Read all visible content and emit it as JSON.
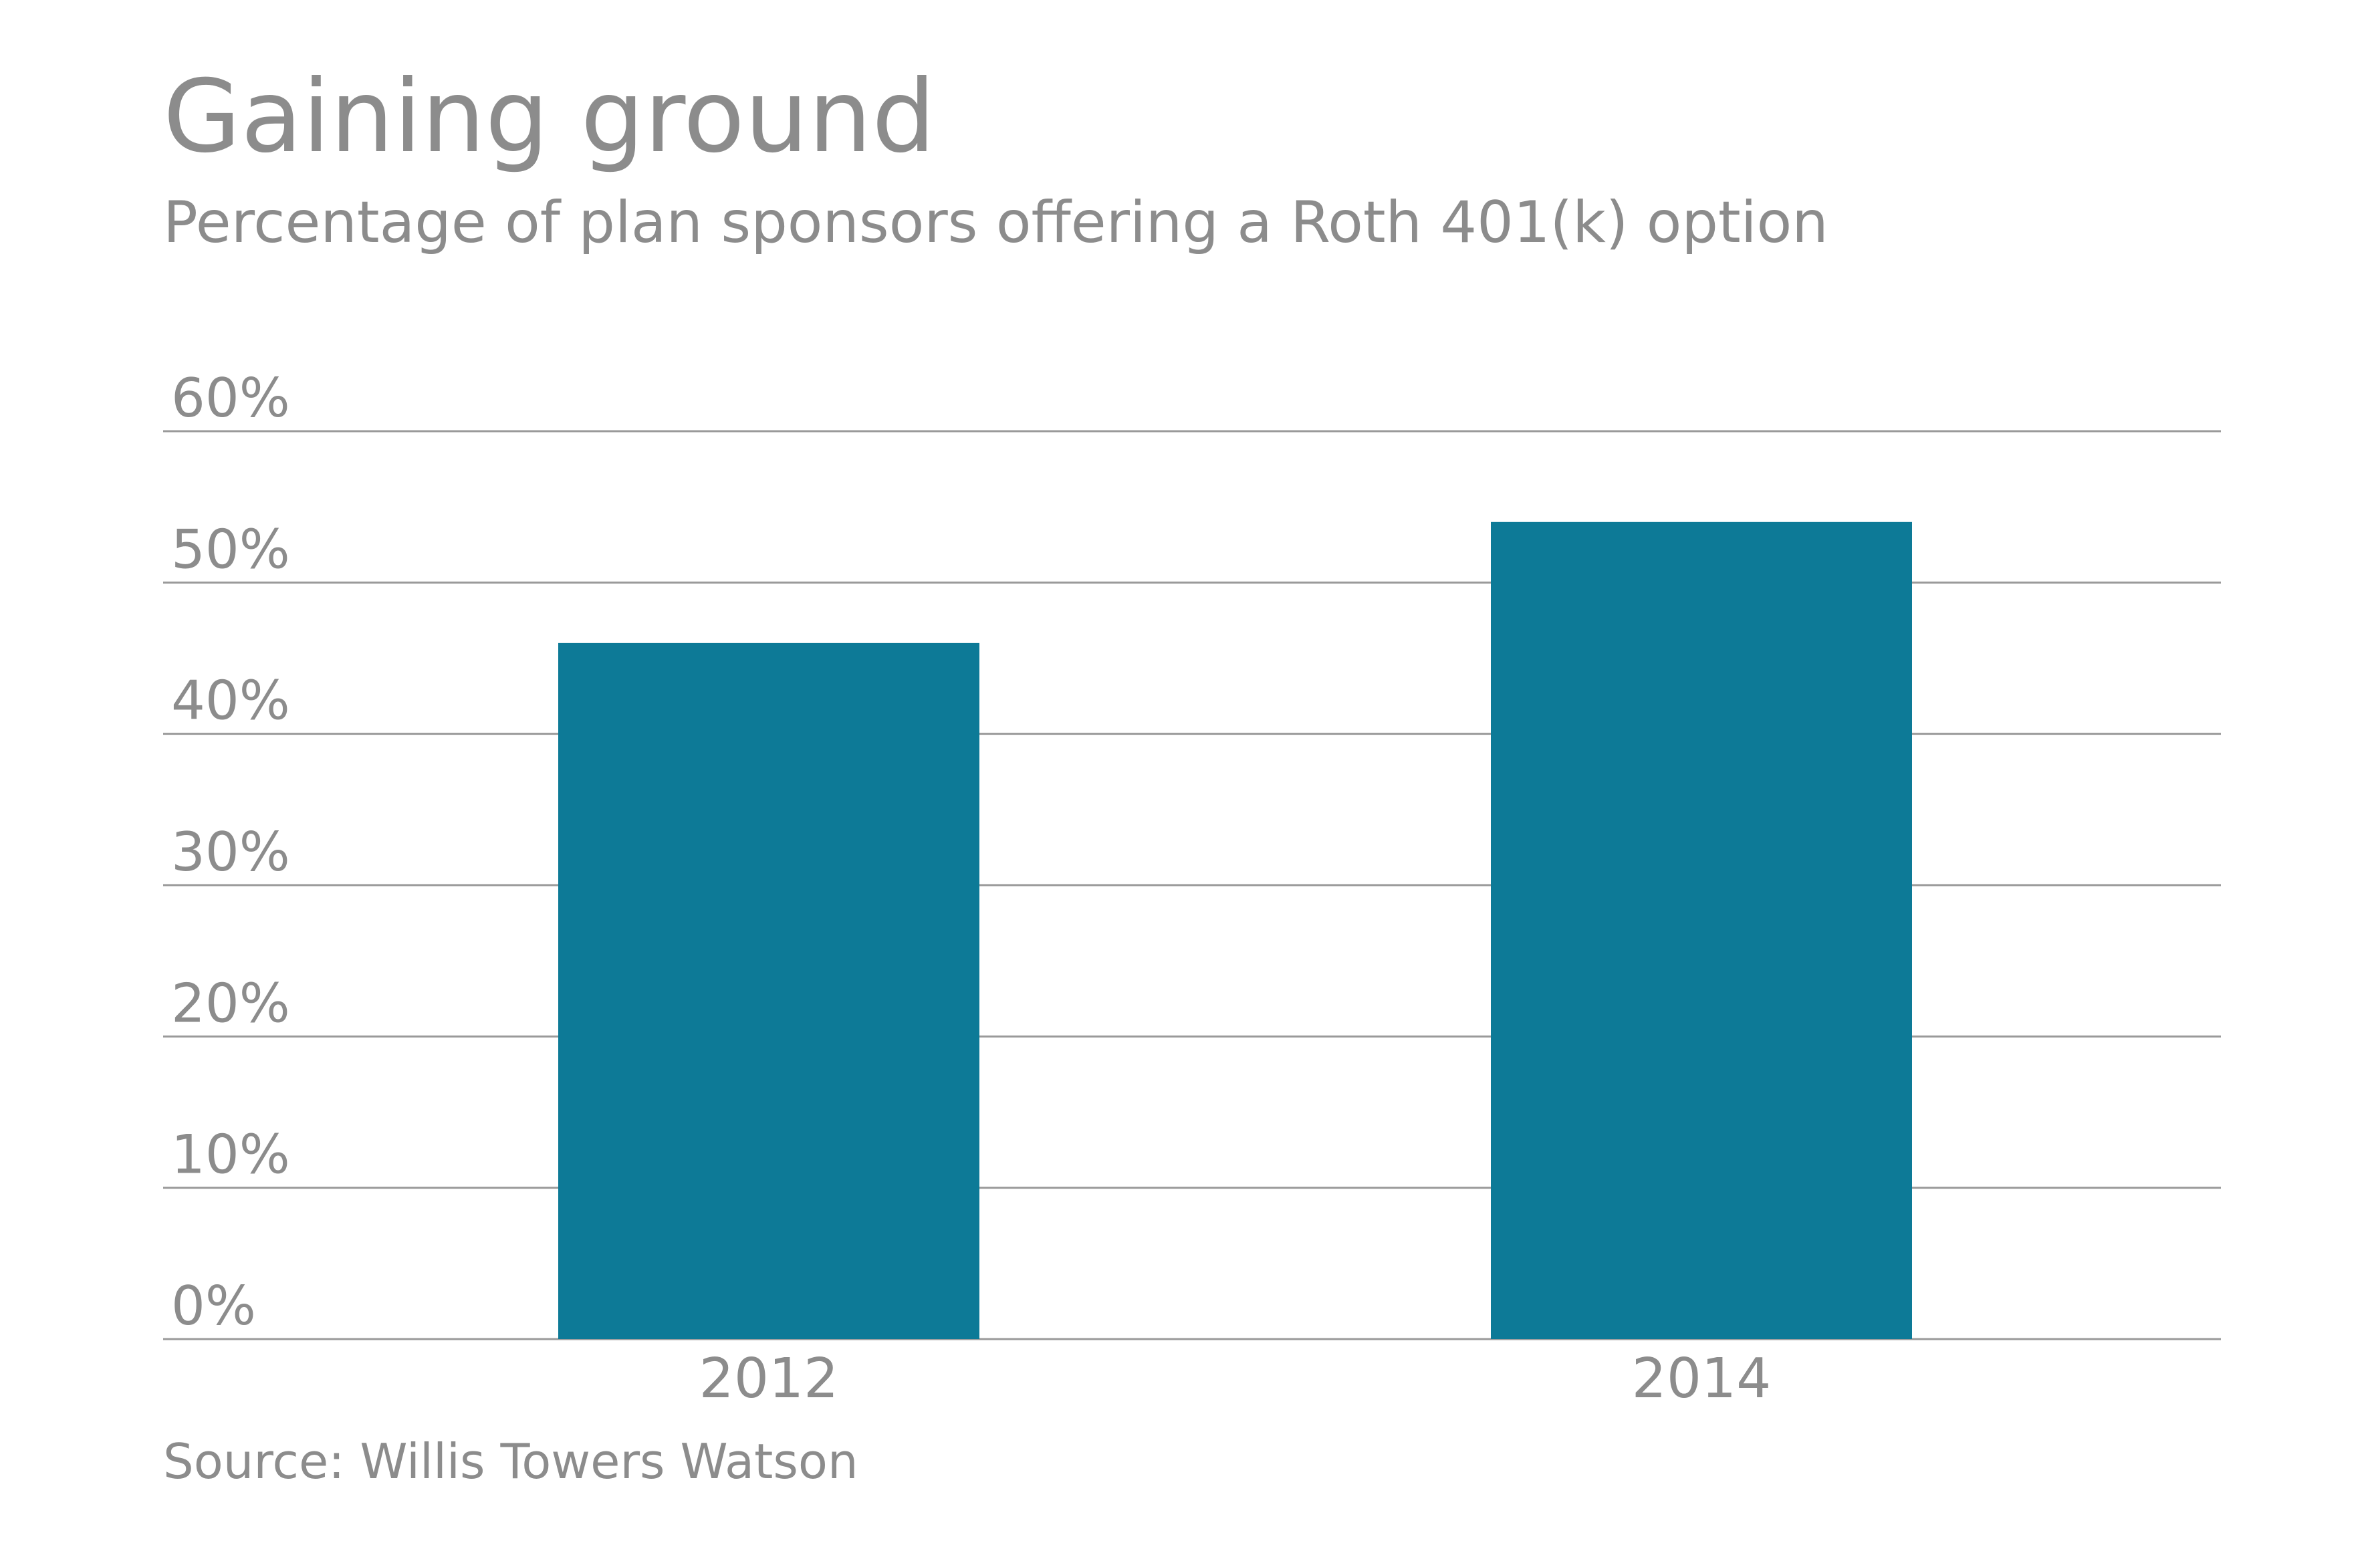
{
  "chart_data": {
    "type": "bar",
    "title": "Gaining ground",
    "subtitle": "Percentage of plan sponsors offering a Roth 401(k) option",
    "categories": [
      "2012",
      "2014"
    ],
    "values": [
      46,
      54
    ],
    "ylim": [
      0,
      60
    ],
    "y_ticks": [
      0,
      10,
      20,
      30,
      40,
      50,
      60
    ],
    "y_tick_labels": [
      "0%",
      "10%",
      "20%",
      "30%",
      "40%",
      "50%",
      "60%"
    ],
    "grid": true,
    "source": "Source: Willis Towers Watson"
  },
  "colors": {
    "bar": "#0d7a97",
    "text": "#8c8c8c",
    "grid": "#9a9a9a"
  }
}
